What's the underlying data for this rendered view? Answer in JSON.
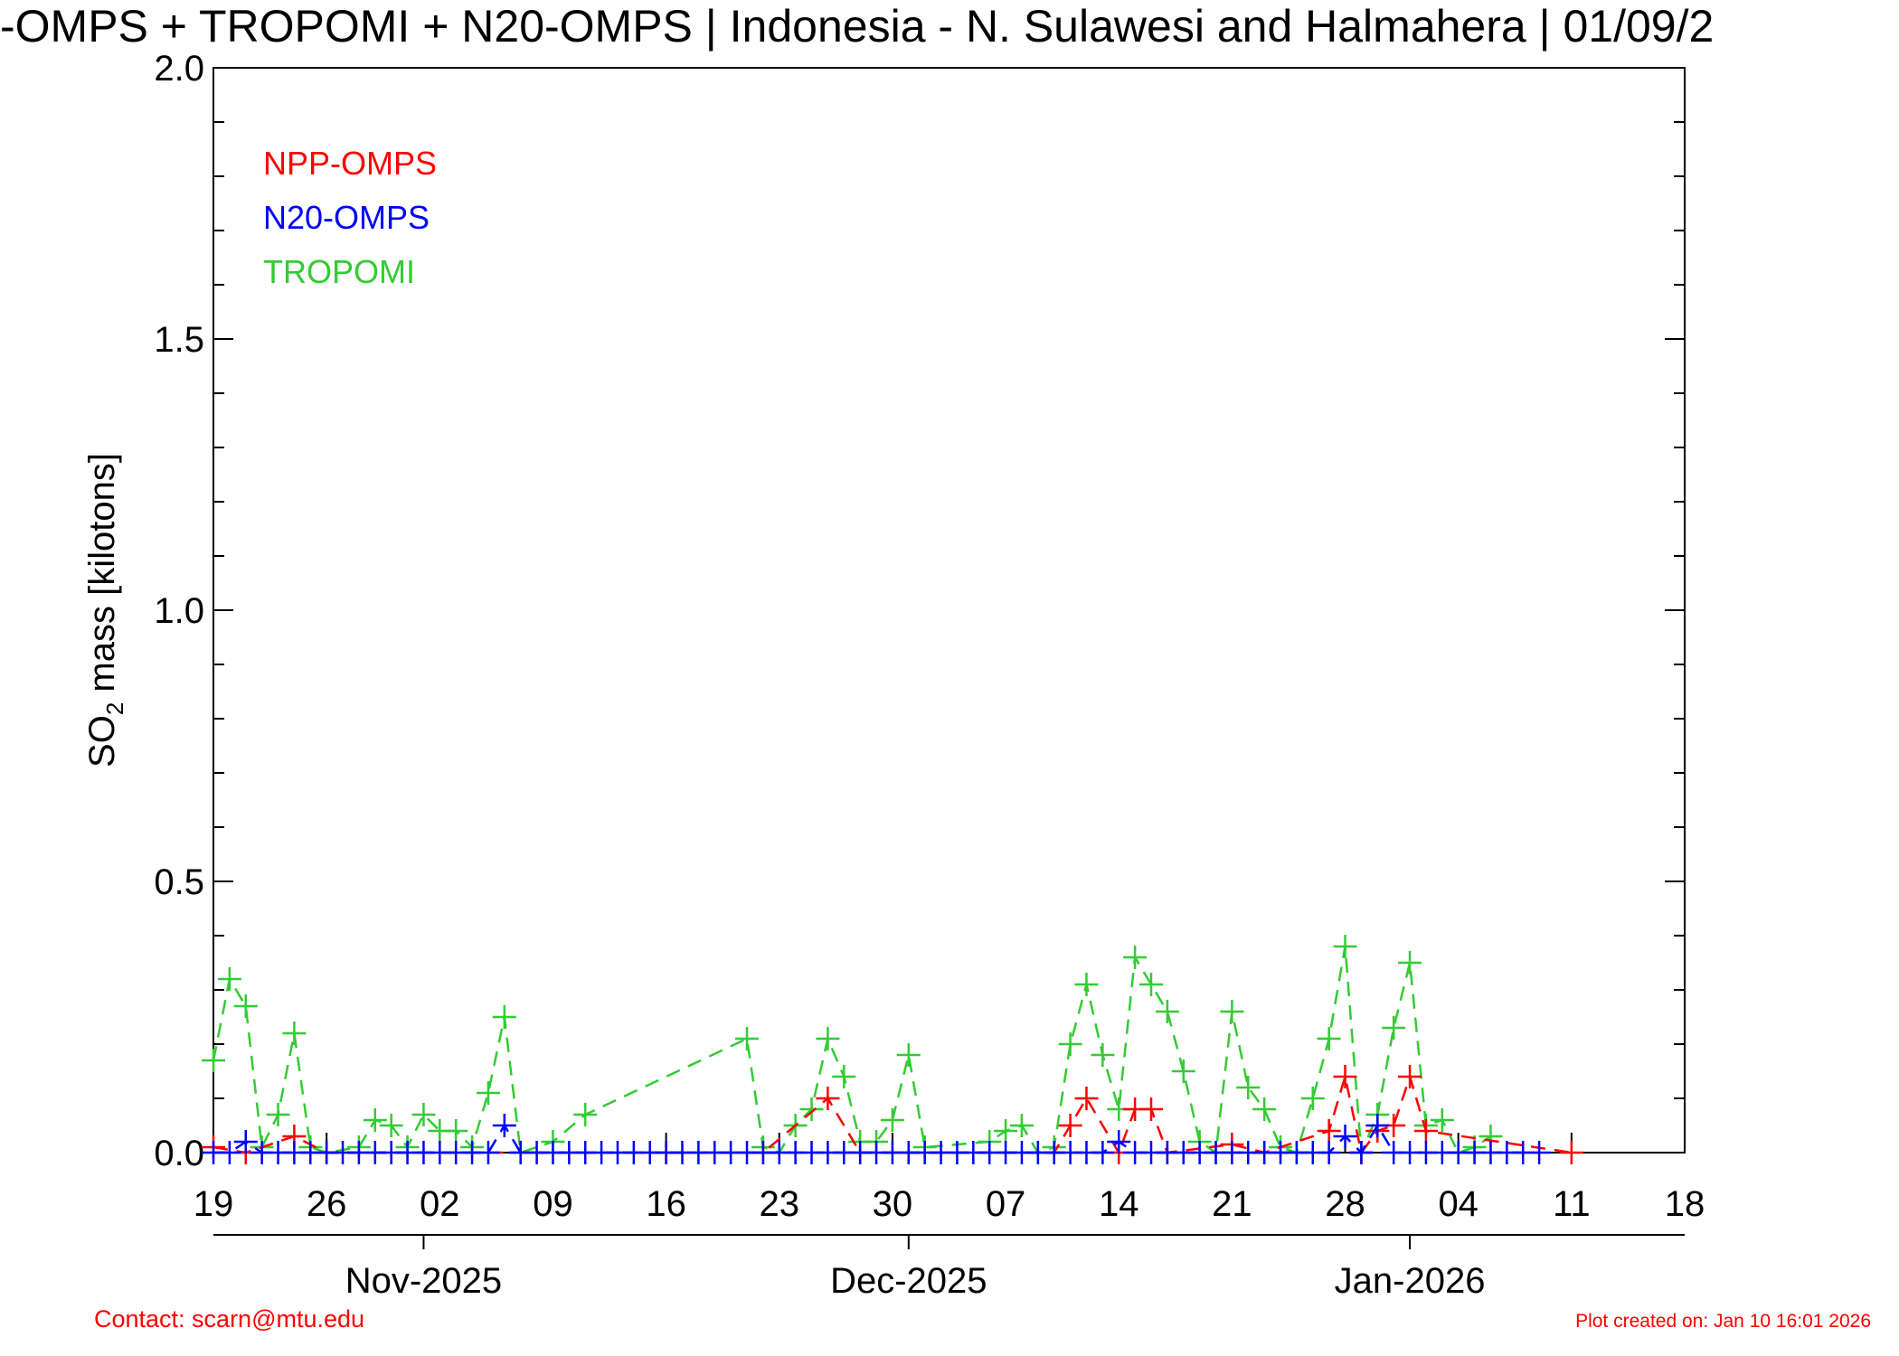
{
  "chart_data": {
    "type": "line",
    "title": "-OMPS + TROPOMI + N20-OMPS | Indonesia - N. Sulawesi and Halmahera | 01/09/2",
    "y_label": {
      "text": "SO",
      "sub": "2",
      "rest": " mass [kilotons]"
    },
    "contact": "Contact: scarn@mtu.edu",
    "created": "Plot created on: Jan 10 16:01 2026",
    "xlim": [
      "2025-10-19",
      "2026-01-18"
    ],
    "xticks": [
      {
        "value": "2025-10-19",
        "label": "19"
      },
      {
        "value": "2025-10-26",
        "label": "26"
      },
      {
        "value": "2025-11-02",
        "label": "02"
      },
      {
        "value": "2025-11-09",
        "label": "09"
      },
      {
        "value": "2025-11-16",
        "label": "16"
      },
      {
        "value": "2025-11-23",
        "label": "23"
      },
      {
        "value": "2025-11-30",
        "label": "30"
      },
      {
        "value": "2025-12-07",
        "label": "07"
      },
      {
        "value": "2025-12-14",
        "label": "14"
      },
      {
        "value": "2025-12-21",
        "label": "21"
      },
      {
        "value": "2025-12-28",
        "label": "28"
      },
      {
        "value": "2026-01-04",
        "label": "04"
      },
      {
        "value": "2026-01-11",
        "label": "11"
      },
      {
        "value": "2026-01-18",
        "label": "18"
      }
    ],
    "month_ticks": [
      {
        "value": "2025-11-01",
        "label": "Nov-2025"
      },
      {
        "value": "2025-12-01",
        "label": "Dec-2025"
      },
      {
        "value": "2026-01-01",
        "label": "Jan-2026"
      }
    ],
    "ylim": [
      0,
      2
    ],
    "yticks": [
      {
        "value": 0,
        "label": "0.0"
      },
      {
        "value": 0.5,
        "label": "0.5"
      },
      {
        "value": 1,
        "label": "1.0"
      },
      {
        "value": 1.5,
        "label": "1.5"
      },
      {
        "value": 2,
        "label": "2.0"
      }
    ],
    "yminorticks": [
      0.1,
      0.2,
      0.3,
      0.4,
      0.6,
      0.7,
      0.8,
      0.9,
      1.1,
      1.2,
      1.3,
      1.4,
      1.6,
      1.7,
      1.8,
      1.9
    ],
    "legend": "upper left",
    "series": [
      {
        "name": "NPP-OMPS",
        "color": "#ff0000",
        "x": [
          "2025-10-19",
          "2025-10-21",
          "2025-10-24",
          "2025-10-26",
          "2025-11-16",
          "2025-11-22",
          "2025-11-26",
          "2025-11-28",
          "2025-12-01",
          "2025-12-10",
          "2025-12-11",
          "2025-12-12",
          "2025-12-14",
          "2025-12-15",
          "2025-12-16",
          "2025-12-17",
          "2025-12-21",
          "2025-12-23",
          "2025-12-27",
          "2025-12-28",
          "2025-12-29",
          "2025-12-30",
          "2025-12-31",
          "2026-01-01",
          "2026-01-02",
          "2026-01-11"
        ],
        "values": [
          0.01,
          0,
          0.03,
          0,
          0,
          0,
          0.1,
          0,
          0,
          0,
          0.05,
          0.1,
          0,
          0.08,
          0.08,
          0,
          0.015,
          0,
          0.04,
          0.14,
          0,
          0.04,
          0.05,
          0.14,
          0.04,
          0
        ]
      },
      {
        "name": "N20-OMPS",
        "color": "#0000ff",
        "x": [
          "2025-10-19",
          "2025-10-20",
          "2025-10-21",
          "2025-10-22",
          "2025-10-23",
          "2025-10-24",
          "2025-10-25",
          "2025-10-26",
          "2025-10-27",
          "2025-10-28",
          "2025-10-29",
          "2025-10-30",
          "2025-10-31",
          "2025-11-01",
          "2025-11-02",
          "2025-11-03",
          "2025-11-04",
          "2025-11-05",
          "2025-11-06",
          "2025-11-07",
          "2025-11-08",
          "2025-11-09",
          "2025-11-10",
          "2025-11-11",
          "2025-11-12",
          "2025-11-13",
          "2025-11-14",
          "2025-11-15",
          "2025-11-16",
          "2025-11-17",
          "2025-11-18",
          "2025-11-19",
          "2025-11-20",
          "2025-11-21",
          "2025-11-22",
          "2025-11-23",
          "2025-11-24",
          "2025-11-25",
          "2025-11-26",
          "2025-11-27",
          "2025-11-28",
          "2025-11-29",
          "2025-11-30",
          "2025-12-01",
          "2025-12-02",
          "2025-12-03",
          "2025-12-04",
          "2025-12-05",
          "2025-12-06",
          "2025-12-07",
          "2025-12-08",
          "2025-12-09",
          "2025-12-10",
          "2025-12-11",
          "2025-12-12",
          "2025-12-13",
          "2025-12-14",
          "2025-12-15",
          "2025-12-16",
          "2025-12-17",
          "2025-12-18",
          "2025-12-19",
          "2025-12-20",
          "2025-12-21",
          "2025-12-22",
          "2025-12-23",
          "2025-12-24",
          "2025-12-25",
          "2025-12-26",
          "2025-12-27",
          "2025-12-28",
          "2025-12-29",
          "2025-12-30",
          "2025-12-31",
          "2026-01-01",
          "2026-01-02",
          "2026-01-03",
          "2026-01-04",
          "2026-01-05",
          "2026-01-06",
          "2026-01-07",
          "2026-01-08",
          "2026-01-09"
        ],
        "values": [
          0,
          0,
          0.02,
          0,
          0,
          0,
          0,
          0,
          0,
          0,
          0,
          0,
          0,
          0,
          0,
          0,
          0,
          0,
          0.05,
          0,
          0,
          0,
          0,
          0,
          0,
          0,
          0,
          0,
          0,
          0,
          0,
          0,
          0,
          0,
          0,
          0,
          0,
          0,
          0,
          0,
          0,
          0,
          0,
          0,
          0,
          0,
          0,
          0,
          0,
          0,
          0,
          0,
          0,
          0,
          0,
          0,
          0.02,
          0,
          0,
          0,
          0,
          0,
          0,
          0,
          0,
          0,
          0,
          0,
          0,
          0,
          0.03,
          0,
          0.05,
          0,
          0,
          0,
          0,
          0,
          0,
          0,
          0,
          0,
          0
        ]
      },
      {
        "name": "TROPOMI",
        "color": "#33cc33",
        "x": [
          "2025-10-19",
          "2025-10-20",
          "2025-10-21",
          "2025-10-22",
          "2025-10-23",
          "2025-10-24",
          "2025-10-25",
          "2025-10-26",
          "2025-10-28",
          "2025-10-29",
          "2025-10-30",
          "2025-10-31",
          "2025-11-01",
          "2025-11-02",
          "2025-11-03",
          "2025-11-04",
          "2025-11-05",
          "2025-11-06",
          "2025-11-07",
          "2025-11-09",
          "2025-11-11",
          "2025-11-21",
          "2025-11-22",
          "2025-11-23",
          "2025-11-24",
          "2025-11-25",
          "2025-11-26",
          "2025-11-27",
          "2025-11-28",
          "2025-11-29",
          "2025-11-30",
          "2025-12-01",
          "2025-12-02",
          "2025-12-06",
          "2025-12-07",
          "2025-12-08",
          "2025-12-09",
          "2025-12-10",
          "2025-12-11",
          "2025-12-12",
          "2025-12-13",
          "2025-12-14",
          "2025-12-15",
          "2025-12-16",
          "2025-12-17",
          "2025-12-18",
          "2025-12-19",
          "2025-12-20",
          "2025-12-21",
          "2025-12-22",
          "2025-12-23",
          "2025-12-24",
          "2025-12-25",
          "2025-12-26",
          "2025-12-27",
          "2025-12-28",
          "2025-12-29",
          "2025-12-30",
          "2025-12-31",
          "2026-01-01",
          "2026-01-02",
          "2026-01-03",
          "2026-01-04",
          "2026-01-05",
          "2026-01-06"
        ],
        "values": [
          0.17,
          0.32,
          0.27,
          0.01,
          0.07,
          0.22,
          0.01,
          0,
          0.01,
          0.06,
          0.05,
          0.01,
          0.07,
          0.04,
          0.04,
          0.01,
          0.11,
          0.25,
          0,
          0.02,
          0.07,
          0.21,
          0.01,
          0,
          0.05,
          0.08,
          0.21,
          0.14,
          0.02,
          0.02,
          0.06,
          0.18,
          0.01,
          0.02,
          0.04,
          0.05,
          0,
          0.01,
          0.2,
          0.31,
          0.18,
          0.08,
          0.36,
          0.31,
          0.26,
          0.15,
          0.02,
          0,
          0.26,
          0.12,
          0.08,
          0.01,
          0,
          0.1,
          0.21,
          0.38,
          0,
          0.07,
          0.23,
          0.35,
          0.05,
          0.06,
          0,
          0.01,
          0.03
        ]
      }
    ]
  }
}
